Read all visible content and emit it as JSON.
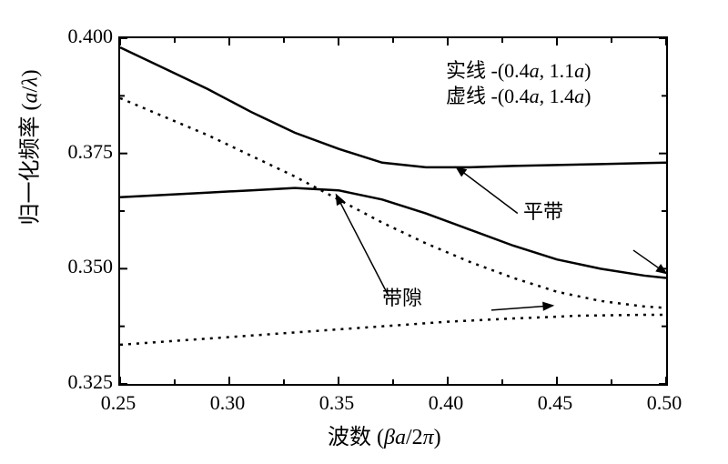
{
  "chart": {
    "type": "line",
    "xlim": [
      0.25,
      0.5
    ],
    "ylim": [
      0.325,
      0.4
    ],
    "xticks": [
      0.25,
      0.3,
      0.35,
      0.4,
      0.45,
      0.5
    ],
    "yticks": [
      0.325,
      0.35,
      0.375,
      0.4
    ],
    "xtick_labels": [
      "0.25",
      "0.30",
      "0.35",
      "0.40",
      "0.45",
      "0.50"
    ],
    "ytick_labels": [
      "0.325",
      "0.350",
      "0.375",
      "0.400"
    ],
    "ylabel": "归一化频率 (a/λ)",
    "xlabel": "波数 (βa/2π)",
    "ylabel_plain": "归一化频率 ",
    "ylabel_paren": "(a/λ)",
    "xlabel_plain": "波数 ",
    "xlabel_paren": "(βa/2π)",
    "background_color": "#ffffff",
    "axis_color": "#000000",
    "tick_length_major": 8,
    "tick_length_minor": 5,
    "minor_xticks": [
      0.275,
      0.325,
      0.375,
      0.425,
      0.475
    ],
    "minor_yticks": [
      0.3375,
      0.3625,
      0.3875
    ],
    "series": {
      "solid_upper": {
        "color": "#000000",
        "width": 2.5,
        "dash": "none",
        "data": [
          [
            0.25,
            0.398
          ],
          [
            0.27,
            0.3935
          ],
          [
            0.29,
            0.389
          ],
          [
            0.31,
            0.384
          ],
          [
            0.33,
            0.3795
          ],
          [
            0.35,
            0.376
          ],
          [
            0.37,
            0.373
          ],
          [
            0.39,
            0.372
          ],
          [
            0.41,
            0.372
          ],
          [
            0.43,
            0.3723
          ],
          [
            0.45,
            0.3725
          ],
          [
            0.47,
            0.3727
          ],
          [
            0.49,
            0.3729
          ],
          [
            0.5,
            0.373
          ]
        ]
      },
      "solid_lower": {
        "color": "#000000",
        "width": 2.5,
        "dash": "none",
        "data": [
          [
            0.25,
            0.3655
          ],
          [
            0.27,
            0.366
          ],
          [
            0.29,
            0.3665
          ],
          [
            0.31,
            0.367
          ],
          [
            0.33,
            0.3675
          ],
          [
            0.35,
            0.367
          ],
          [
            0.37,
            0.365
          ],
          [
            0.39,
            0.362
          ],
          [
            0.41,
            0.3585
          ],
          [
            0.43,
            0.355
          ],
          [
            0.45,
            0.352
          ],
          [
            0.47,
            0.35
          ],
          [
            0.49,
            0.3485
          ],
          [
            0.5,
            0.348
          ]
        ]
      },
      "dotted_upper": {
        "color": "#000000",
        "width": 2.5,
        "dash": "3,6",
        "data": [
          [
            0.25,
            0.387
          ],
          [
            0.27,
            0.383
          ],
          [
            0.29,
            0.379
          ],
          [
            0.31,
            0.3745
          ],
          [
            0.33,
            0.37
          ],
          [
            0.35,
            0.365
          ],
          [
            0.37,
            0.36
          ],
          [
            0.39,
            0.3555
          ],
          [
            0.41,
            0.3515
          ],
          [
            0.43,
            0.348
          ],
          [
            0.45,
            0.345
          ],
          [
            0.47,
            0.343
          ],
          [
            0.49,
            0.3418
          ],
          [
            0.5,
            0.3415
          ]
        ]
      },
      "dotted_lower": {
        "color": "#000000",
        "width": 2.5,
        "dash": "3,6",
        "data": [
          [
            0.25,
            0.3335
          ],
          [
            0.28,
            0.3345
          ],
          [
            0.31,
            0.3355
          ],
          [
            0.34,
            0.3365
          ],
          [
            0.37,
            0.3375
          ],
          [
            0.4,
            0.3385
          ],
          [
            0.43,
            0.3392
          ],
          [
            0.46,
            0.3398
          ],
          [
            0.49,
            0.34
          ],
          [
            0.5,
            0.34
          ]
        ]
      }
    },
    "legend": {
      "line1": "实线 -(0.4a, 1.1a)",
      "line2": "虚线 -(0.4a, 1.4a)"
    },
    "annotations": {
      "flat_band": "平带",
      "band_gap": "带隙"
    },
    "arrows": [
      {
        "from": [
          0.432,
          0.362
        ],
        "to": [
          0.404,
          0.372
        ],
        "comment": "平带 to solid upper"
      },
      {
        "from": [
          0.485,
          0.354
        ],
        "to": [
          0.5,
          0.349
        ],
        "comment": "平带 to solid lower-right"
      },
      {
        "from": [
          0.373,
          0.344
        ],
        "to": [
          0.349,
          0.366
        ],
        "comment": "带隙 to upper gap"
      },
      {
        "from": [
          0.42,
          0.341
        ],
        "to": [
          0.448,
          0.342
        ],
        "comment": "带隙 to dotted gap"
      }
    ],
    "label_fontsize": 24,
    "tick_fontsize": 22,
    "legend_fontsize": 22
  }
}
